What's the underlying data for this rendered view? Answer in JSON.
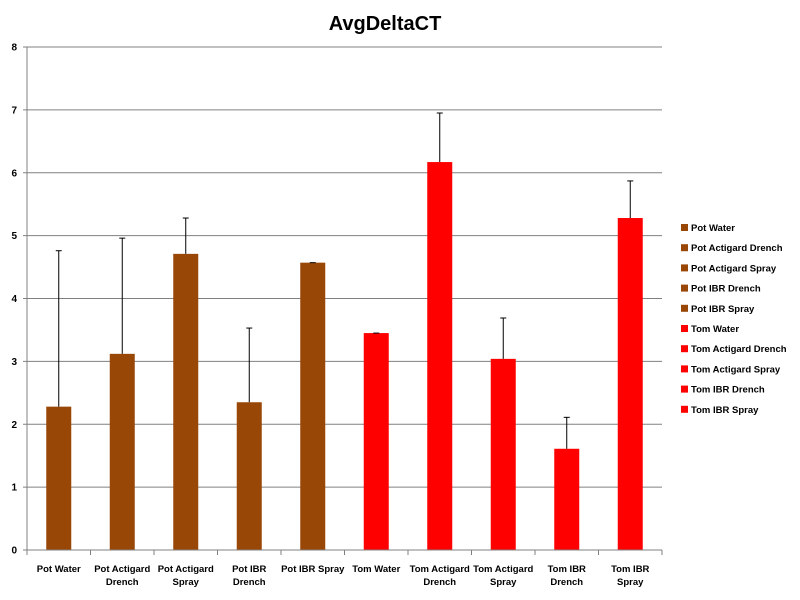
{
  "chart_data": {
    "type": "bar",
    "title": "AvgDeltaCT",
    "xlabel": "",
    "ylabel": "",
    "ylim": [
      0,
      8
    ],
    "yticks": [
      "0",
      "1",
      "2",
      "3",
      "4",
      "5",
      "6",
      "7",
      "8"
    ],
    "grid": true,
    "legend_position": "right",
    "categories": [
      [
        "Pot Water"
      ],
      [
        "Pot Actigard",
        "Drench"
      ],
      [
        "Pot Actigard",
        "Spray"
      ],
      [
        "Pot IBR",
        "Drench"
      ],
      [
        "Pot IBR Spray"
      ],
      [
        "Tom Water"
      ],
      [
        "Tom Actigard",
        "Drench"
      ],
      [
        "Tom Actigard",
        "Spray"
      ],
      [
        "Tom IBR",
        "Drench"
      ],
      [
        "Tom IBR",
        "Spray"
      ]
    ],
    "series": [
      {
        "name": "Pot Water",
        "value": 2.28,
        "error": 2.48,
        "color": "#994706"
      },
      {
        "name": "Pot Actigard Drench",
        "value": 3.12,
        "error": 1.84,
        "color": "#994706"
      },
      {
        "name": "Pot Actigard Spray",
        "value": 4.71,
        "error": 0.57,
        "color": "#994706"
      },
      {
        "name": "Pot IBR Drench",
        "value": 2.35,
        "error": 1.18,
        "color": "#994706"
      },
      {
        "name": "Pot IBR Spray",
        "value": 4.57,
        "error": 0.0,
        "color": "#994706"
      },
      {
        "name": "Tom Water",
        "value": 3.45,
        "error": 0.0,
        "color": "#ff0000"
      },
      {
        "name": "Tom Actigard Drench",
        "value": 6.17,
        "error": 0.78,
        "color": "#ff0000"
      },
      {
        "name": "Tom Actigard Spray",
        "value": 3.04,
        "error": 0.65,
        "color": "#ff0000"
      },
      {
        "name": "Tom IBR Drench",
        "value": 1.61,
        "error": 0.5,
        "color": "#ff0000"
      },
      {
        "name": "Tom IBR Spray",
        "value": 5.28,
        "error": 0.59,
        "color": "#ff0000"
      }
    ]
  }
}
